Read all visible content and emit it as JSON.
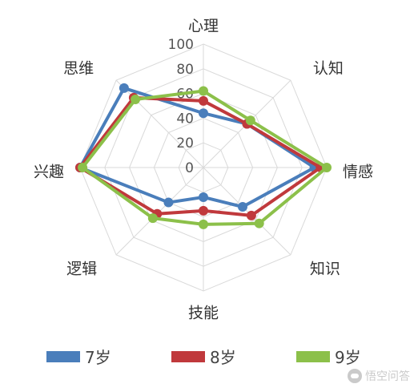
{
  "chart_data": {
    "type": "radar",
    "axes": [
      "心理",
      "认知",
      "情感",
      "知识",
      "技能",
      "逻辑",
      "兴趣",
      "思维"
    ],
    "tick_labels": [
      "0",
      "20",
      "40",
      "60",
      "80",
      "100"
    ],
    "range": [
      0,
      100
    ],
    "series": [
      {
        "name": "7岁",
        "color": "#4a7ebb",
        "values": [
          44,
          50,
          90,
          45,
          24,
          40,
          100,
          91
        ]
      },
      {
        "name": "8岁",
        "color": "#c0393c",
        "values": [
          54,
          50,
          95,
          55,
          35,
          53,
          100,
          80
        ]
      },
      {
        "name": "9岁",
        "color": "#8cc04a",
        "values": [
          62,
          54,
          100,
          64,
          46,
          58,
          98,
          78
        ]
      }
    ],
    "grid": true,
    "legend_position": "bottom"
  },
  "watermark": {
    "text": "悟空问答"
  }
}
